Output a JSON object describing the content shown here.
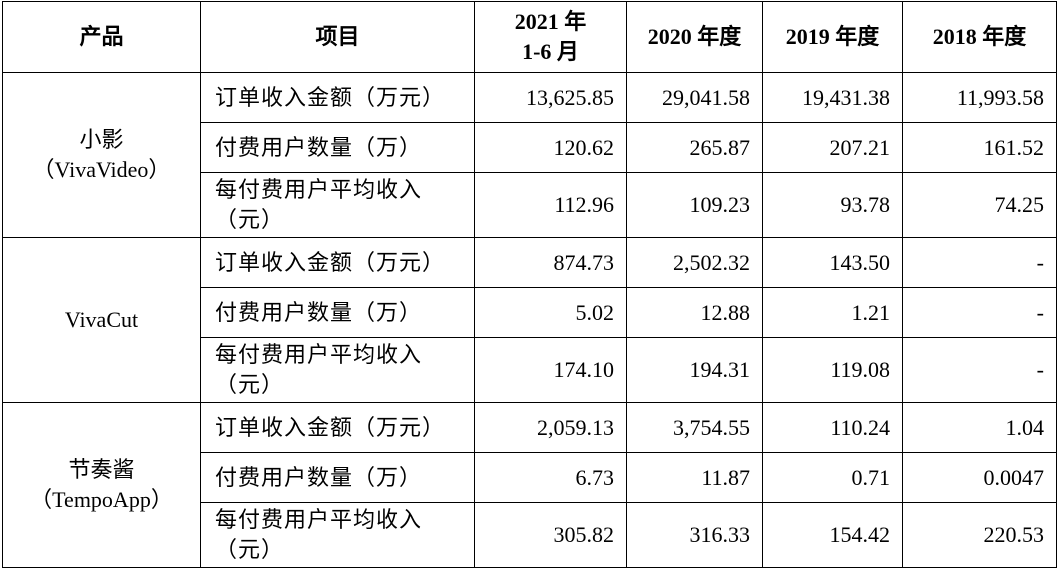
{
  "table": {
    "header": [
      "产品",
      "项目",
      [
        "2021 年",
        "1-6 月"
      ],
      "2020 年度",
      "2019 年度",
      "2018 年度"
    ],
    "groups": [
      {
        "product": [
          "小影",
          "（VivaVideo）"
        ],
        "rows": [
          [
            "订单收入金额（万元）",
            "13,625.85",
            "29,041.58",
            "19,431.38",
            "11,993.58"
          ],
          [
            "付费用户数量（万）",
            "120.62",
            "265.87",
            "207.21",
            "161.52"
          ],
          [
            "每付费用户平均收入（元）",
            "112.96",
            "109.23",
            "93.78",
            "74.25"
          ]
        ]
      },
      {
        "product": [
          "VivaCut"
        ],
        "rows": [
          [
            "订单收入金额（万元）",
            "874.73",
            "2,502.32",
            "143.50",
            "-"
          ],
          [
            "付费用户数量（万）",
            "5.02",
            "12.88",
            "1.21",
            "-"
          ],
          [
            "每付费用户平均收入（元）",
            "174.10",
            "194.31",
            "119.08",
            "-"
          ]
        ]
      },
      {
        "product": [
          "节奏酱",
          "（TempoApp）"
        ],
        "rows": [
          [
            "订单收入金额（万元）",
            "2,059.13",
            "3,754.55",
            "110.24",
            "1.04"
          ],
          [
            "付费用户数量（万）",
            "6.73",
            "11.87",
            "0.71",
            "0.0047"
          ],
          [
            "每付费用户平均收入（元）",
            "305.82",
            "316.33",
            "154.42",
            "220.53"
          ]
        ]
      }
    ]
  }
}
